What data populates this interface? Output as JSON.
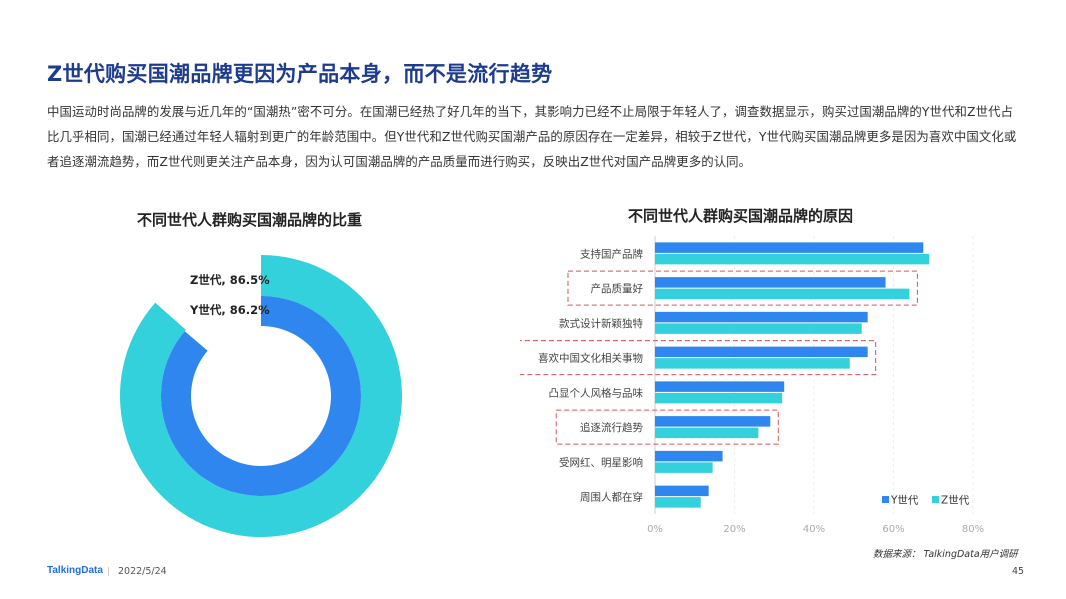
{
  "page": {
    "title": "Z世代购买国潮品牌更因为产品本身，而不是流行趋势",
    "paragraph": "中国运动时尚品牌的发展与近几年的“国潮热”密不可分。在国潮已经热了好几年的当下，其影响力已经不止局限于年轻人了，调查数据显示，购买过国潮品牌的Y世代和Z世代占比几乎相同，国潮已经通过年轻人辐射到更广的年龄范围中。但Y世代和Z世代购买国潮产品的原因存在一定差异，相较于Z世代，Y世代购买国潮品牌更多是因为喜欢中国文化或者追逐潮流趋势，而Z世代则更关注产品本身，因为认可国潮品牌的产品质量而进行购买，反映出Z世代对国产品牌更多的认同。",
    "source": "数据来源： TalkingData用户调研",
    "logo": "TalkingData",
    "date": "2022/5/24",
    "page_number": "45"
  },
  "chart_data": [
    {
      "type": "pie",
      "variant": "nested-donut",
      "title": "不同世代人群购买国潮品牌的比重",
      "series": [
        {
          "name": "Z世代",
          "value": 86.5,
          "label": "Z世代, 86.5%",
          "color": "#33d1dc"
        },
        {
          "name": "Y世代",
          "value": 86.2,
          "label": "Y世代, 86.2%",
          "color": "#2f86ee"
        }
      ]
    },
    {
      "type": "bar",
      "orientation": "horizontal",
      "title": "不同世代人群购买国潮品牌的原因",
      "categories": [
        "支持国产品牌",
        "产品质量好",
        "款式设计新颖独特",
        "喜欢中国文化相关事物",
        "凸显个人风格与品味",
        "追逐流行趋势",
        "受网红、明星影响",
        "周围人都在穿"
      ],
      "series": [
        {
          "name": "Y世代",
          "color": "#2f86ee",
          "values": [
            67.5,
            58,
            53.5,
            53.5,
            32.5,
            29,
            17,
            13.5
          ]
        },
        {
          "name": "Z世代",
          "color": "#33d1dc",
          "values": [
            69,
            64,
            52,
            49,
            32,
            26,
            14.5,
            11.5
          ]
        }
      ],
      "xlim": [
        0,
        80
      ],
      "xticks": [
        "0%",
        "20%",
        "40%",
        "60%",
        "80%"
      ],
      "grid": true,
      "legend": "bottom-right",
      "highlighted": [
        "产品质量好",
        "喜欢中国文化相关事物",
        "追逐流行趋势"
      ]
    }
  ]
}
